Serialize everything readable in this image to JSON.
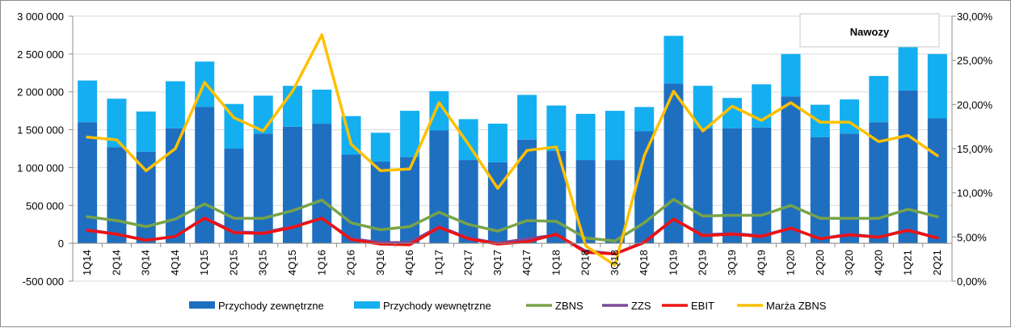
{
  "chart_data": {
    "type": "bar",
    "title": "Nawozy",
    "categories": [
      "1Q14",
      "2Q14",
      "3Q14",
      "4Q14",
      "1Q15",
      "2Q15",
      "3Q15",
      "4Q15",
      "1Q16",
      "2Q16",
      "3Q16",
      "4Q16",
      "1Q17",
      "2Q17",
      "3Q17",
      "4Q17",
      "1Q18",
      "2Q18",
      "3Q18",
      "4Q18",
      "1Q19",
      "2Q19",
      "3Q19",
      "4Q19",
      "1Q20",
      "2Q20",
      "3Q20",
      "4Q20",
      "1Q21",
      "2Q21"
    ],
    "y_left": {
      "ylim": [
        -500000,
        3000000
      ],
      "ticks": [
        -500000,
        0,
        500000,
        1000000,
        1500000,
        2000000,
        2500000,
        3000000
      ],
      "tick_labels": [
        "-500 000",
        "0",
        "500 000",
        "1 000 000",
        "1 500 000",
        "2 000 000",
        "2 500 000",
        "3 000 000"
      ]
    },
    "y_right": {
      "ylim": [
        0,
        30
      ],
      "ticks": [
        0,
        5,
        10,
        15,
        20,
        25,
        30
      ],
      "tick_labels": [
        "0,00%",
        "5,00%",
        "10,00%",
        "15,00%",
        "20,00%",
        "25,00%",
        "30,00%"
      ]
    },
    "grid": true,
    "legend_position": "bottom",
    "series": [
      {
        "name": "Przychody zewnętrzne",
        "kind": "bar-stacked",
        "axis": "left",
        "color": "#1f6fc0",
        "values": [
          1600000,
          1270000,
          1210000,
          1520000,
          1800000,
          1250000,
          1450000,
          1540000,
          1580000,
          1170000,
          1080000,
          1140000,
          1490000,
          1100000,
          1070000,
          1370000,
          1220000,
          1100000,
          1100000,
          1480000,
          2110000,
          1520000,
          1520000,
          1530000,
          1940000,
          1400000,
          1450000,
          1600000,
          2020000,
          1650000
        ]
      },
      {
        "name": "Przychody wewnętrzne",
        "kind": "bar-stacked",
        "axis": "left",
        "color": "#13aff0",
        "values": [
          550000,
          640000,
          530000,
          620000,
          600000,
          590000,
          500000,
          540000,
          450000,
          510000,
          380000,
          610000,
          520000,
          540000,
          510000,
          590000,
          600000,
          610000,
          650000,
          320000,
          630000,
          560000,
          400000,
          570000,
          560000,
          430000,
          450000,
          610000,
          770000,
          850000
        ]
      },
      {
        "name": "ZBNS",
        "kind": "line",
        "axis": "left",
        "color": "#77a349",
        "values": [
          350000,
          300000,
          220000,
          320000,
          520000,
          330000,
          330000,
          430000,
          570000,
          270000,
          180000,
          220000,
          410000,
          250000,
          160000,
          300000,
          290000,
          70000,
          30000,
          270000,
          580000,
          360000,
          370000,
          370000,
          500000,
          330000,
          330000,
          330000,
          450000,
          350000
        ]
      },
      {
        "name": "ZZS",
        "kind": "line",
        "axis": "left",
        "color": "#7b4a9a",
        "values": [
          180000,
          120000,
          40000,
          90000,
          340000,
          150000,
          140000,
          220000,
          330000,
          60000,
          10000,
          10000,
          220000,
          70000,
          0,
          60000,
          110000,
          -100000,
          -140000,
          20000,
          320000,
          110000,
          130000,
          100000,
          200000,
          60000,
          120000,
          80000,
          180000,
          70000
        ]
      },
      {
        "name": "EBIT",
        "kind": "line",
        "axis": "left",
        "color": "#ee1111",
        "values": [
          170000,
          120000,
          40000,
          90000,
          330000,
          140000,
          130000,
          210000,
          330000,
          50000,
          -10000,
          -20000,
          210000,
          60000,
          -10000,
          20000,
          120000,
          -120000,
          -140000,
          10000,
          320000,
          100000,
          120000,
          90000,
          200000,
          60000,
          110000,
          80000,
          170000,
          70000
        ]
      },
      {
        "name": "Marża ZBNS",
        "kind": "line",
        "axis": "right",
        "color": "#ffc000",
        "values": [
          16.3,
          16.0,
          12.5,
          15.0,
          22.5,
          18.5,
          17.0,
          21.5,
          27.9,
          15.5,
          12.5,
          12.7,
          20.2,
          15.5,
          10.5,
          14.8,
          15.2,
          4.0,
          1.8,
          14.2,
          21.5,
          17.0,
          19.8,
          18.2,
          20.2,
          18.0,
          18.0,
          15.8,
          16.5,
          14.2
        ]
      }
    ]
  }
}
